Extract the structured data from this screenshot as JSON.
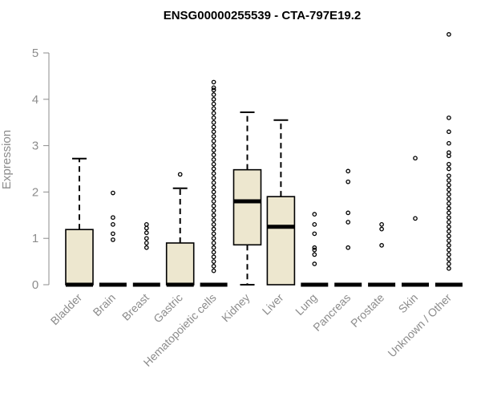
{
  "chart_data": {
    "type": "box",
    "title": "ENSG00000255539 - CTA-797E19.2",
    "xlabel": "",
    "ylabel": "Expression",
    "ylim": [
      0,
      5.5
    ],
    "yticks": [
      "0",
      "1",
      "2",
      "3",
      "4",
      "5"
    ],
    "box_fill": "#ede7cf",
    "grid": false,
    "categories": [
      "Bladder",
      "Brain",
      "Breast",
      "Gastric",
      "Hematopoietic cells",
      "Kidney",
      "Liver",
      "Lung",
      "Pancreas",
      "Prostate",
      "Skin",
      "Unknown / Other"
    ],
    "boxes": [
      {
        "q1": 0,
        "median": 0,
        "q3": 1.19,
        "whisker_low": 0,
        "whisker_high": 2.72,
        "outliers": []
      },
      {
        "q1": 0,
        "median": 0,
        "q3": 0,
        "whisker_low": 0,
        "whisker_high": 0,
        "outliers": [
          0.97,
          1.1,
          1.3,
          1.45,
          1.98
        ]
      },
      {
        "q1": 0,
        "median": 0,
        "q3": 0,
        "whisker_low": 0,
        "whisker_high": 0,
        "outliers": [
          0.8,
          0.9,
          1.0,
          1.12,
          1.22,
          1.3
        ]
      },
      {
        "q1": 0,
        "median": 0,
        "q3": 0.9,
        "whisker_low": 0,
        "whisker_high": 2.08,
        "outliers": [
          2.38
        ]
      },
      {
        "q1": 0,
        "median": 0,
        "q3": 0,
        "whisker_low": 0,
        "whisker_high": 0,
        "outliers": [
          0.3,
          0.4,
          0.5,
          0.6,
          0.7,
          0.8,
          0.9,
          1.0,
          1.1,
          1.2,
          1.3,
          1.4,
          1.5,
          1.6,
          1.7,
          1.8,
          1.9,
          2.0,
          2.1,
          2.2,
          2.3,
          2.4,
          2.5,
          2.6,
          2.7,
          2.8,
          2.9,
          3.0,
          3.1,
          3.2,
          3.3,
          3.4,
          3.5,
          3.6,
          3.7,
          3.8,
          3.9,
          4.0,
          4.1,
          4.2,
          4.25,
          4.37
        ]
      },
      {
        "q1": 0.86,
        "median": 1.8,
        "q3": 2.48,
        "whisker_low": 0,
        "whisker_high": 3.72,
        "outliers": []
      },
      {
        "q1": 0,
        "median": 1.25,
        "q3": 1.9,
        "whisker_low": 0,
        "whisker_high": 3.55,
        "outliers": []
      },
      {
        "q1": 0,
        "median": 0,
        "q3": 0,
        "whisker_low": 0,
        "whisker_high": 0,
        "outliers": [
          0.45,
          0.65,
          0.75,
          0.8,
          1.1,
          1.3,
          1.52
        ]
      },
      {
        "q1": 0,
        "median": 0,
        "q3": 0,
        "whisker_low": 0,
        "whisker_high": 0,
        "outliers": [
          0.8,
          1.35,
          1.55,
          2.22,
          2.45
        ]
      },
      {
        "q1": 0,
        "median": 0,
        "q3": 0,
        "whisker_low": 0,
        "whisker_high": 0,
        "outliers": [
          0.85,
          1.2,
          1.3
        ]
      },
      {
        "q1": 0,
        "median": 0,
        "q3": 0,
        "whisker_low": 0,
        "whisker_high": 0,
        "outliers": [
          1.43,
          2.73
        ]
      },
      {
        "q1": 0,
        "median": 0,
        "q3": 0,
        "whisker_low": 0,
        "whisker_high": 0,
        "outliers": [
          0.35,
          0.45,
          0.55,
          0.65,
          0.75,
          0.85,
          0.95,
          1.05,
          1.15,
          1.25,
          1.35,
          1.45,
          1.55,
          1.65,
          1.75,
          1.85,
          1.95,
          2.05,
          2.15,
          2.25,
          2.35,
          2.5,
          2.6,
          2.78,
          2.85,
          3.05,
          3.3,
          3.6,
          5.4
        ]
      }
    ]
  }
}
